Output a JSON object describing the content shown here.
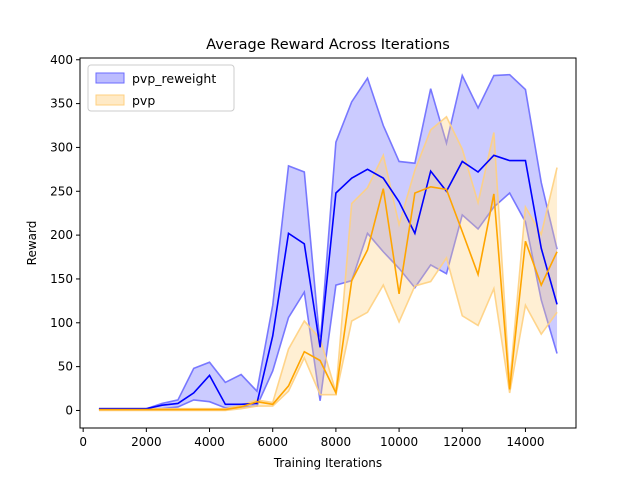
{
  "chart_data": {
    "type": "line",
    "title": "Average Reward Across Iterations",
    "xlabel": "Training Iterations",
    "ylabel": "Reward",
    "xlim": [
      -100,
      15600
    ],
    "ylim": [
      -20,
      402
    ],
    "xticks": [
      0,
      2000,
      4000,
      6000,
      8000,
      10000,
      12000,
      14000
    ],
    "yticks": [
      0,
      50,
      100,
      150,
      200,
      250,
      300,
      350,
      400
    ],
    "grid": false,
    "legend": "top-left",
    "x": [
      500,
      1000,
      1500,
      2000,
      2500,
      3000,
      3500,
      4000,
      4500,
      5000,
      5500,
      6000,
      6500,
      7000,
      7500,
      8000,
      8500,
      9000,
      9500,
      10000,
      10500,
      11000,
      11500,
      12000,
      12500,
      13000,
      13500,
      14000,
      14500,
      15000
    ],
    "series": [
      {
        "name": "pvp_reweight",
        "color": "#0000ff",
        "fill": "#6b6bff",
        "mean": [
          2,
          2,
          2,
          2,
          6,
          8,
          20,
          40,
          7,
          7,
          8,
          85,
          202,
          190,
          72,
          248,
          265,
          275,
          265,
          238,
          202,
          273,
          250,
          284,
          272,
          291,
          285,
          285,
          185,
          121
        ],
        "upper": [
          2,
          2,
          2,
          2,
          8,
          12,
          48,
          55,
          32,
          41,
          22,
          120,
          279,
          272,
          75,
          306,
          352,
          379,
          325,
          284,
          282,
          367,
          305,
          382,
          345,
          382,
          383,
          366,
          260,
          184
        ],
        "lower": [
          1,
          1,
          1,
          1,
          2,
          4,
          12,
          10,
          3,
          4,
          5,
          45,
          106,
          135,
          11,
          143,
          148,
          202,
          181,
          162,
          140,
          166,
          156,
          223,
          207,
          232,
          248,
          215,
          126,
          65
        ]
      },
      {
        "name": "pvp",
        "color": "#ffa500",
        "fill": "#ffd080",
        "mean": [
          1,
          1,
          1,
          1,
          1,
          1,
          1,
          1,
          1,
          4,
          10,
          7,
          28,
          67,
          57,
          20,
          148,
          183,
          253,
          133,
          248,
          255,
          252,
          204,
          155,
          247,
          24,
          193,
          143,
          181
        ],
        "upper": [
          2,
          2,
          2,
          2,
          2,
          2,
          2,
          2,
          2,
          6,
          12,
          9,
          70,
          102,
          82,
          21,
          236,
          254,
          291,
          212,
          274,
          320,
          335,
          298,
          237,
          317,
          30,
          232,
          201,
          277
        ],
        "lower": [
          0,
          0,
          0,
          0,
          0,
          0,
          0,
          0,
          0,
          2,
          5,
          5,
          22,
          60,
          18,
          18,
          102,
          112,
          143,
          101,
          142,
          147,
          174,
          108,
          97,
          139,
          20,
          120,
          87,
          112
        ]
      }
    ]
  }
}
